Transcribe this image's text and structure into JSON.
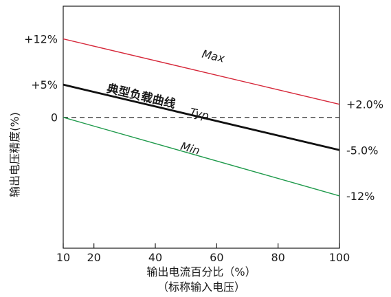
{
  "chart_data": {
    "type": "line",
    "xlabel": "输出电流百分比（%）",
    "xlabel_sub": "（标称输入电压）",
    "ylabel": "输出电压精度(%)",
    "xlim": [
      10,
      100
    ],
    "ylim": [
      -20,
      17
    ],
    "x_ticks": [
      {
        "value": 10,
        "label": "10"
      },
      {
        "value": 20,
        "label": "20"
      },
      {
        "value": 40,
        "label": "40"
      },
      {
        "value": 60,
        "label": "60"
      },
      {
        "value": 80,
        "label": "80"
      },
      {
        "value": 100,
        "label": "100"
      }
    ],
    "y_ticks": [
      {
        "value": 12,
        "label": "+12%"
      },
      {
        "value": 5,
        "label": "+5%"
      },
      {
        "value": 0,
        "label": "0"
      }
    ],
    "right_labels": [
      {
        "value": 2,
        "label": "+2.0%"
      },
      {
        "value": -5,
        "label": "-5.0%"
      },
      {
        "value": -12,
        "label": "-12%"
      }
    ],
    "reference_line": {
      "y": 0,
      "style": "dashed",
      "color": "#333333"
    },
    "series": [
      {
        "name": "Max",
        "color": "#d6283a",
        "x": [
          10,
          100
        ],
        "y": [
          12,
          2
        ],
        "label_at": [
          55,
          9.2
        ]
      },
      {
        "name": "典型负载曲线",
        "name_suffix": "Typ",
        "color": "#111111",
        "x": [
          10,
          100
        ],
        "y": [
          5,
          -5
        ],
        "label_at": [
          24,
          3.9
        ],
        "suffix_at": [
          51,
          0.3
        ]
      },
      {
        "name": "Min",
        "color": "#1f9a4b",
        "x": [
          10,
          100
        ],
        "y": [
          0,
          -12
        ],
        "label_at": [
          48,
          -4.9
        ]
      }
    ],
    "grid": false,
    "legend": "none"
  }
}
